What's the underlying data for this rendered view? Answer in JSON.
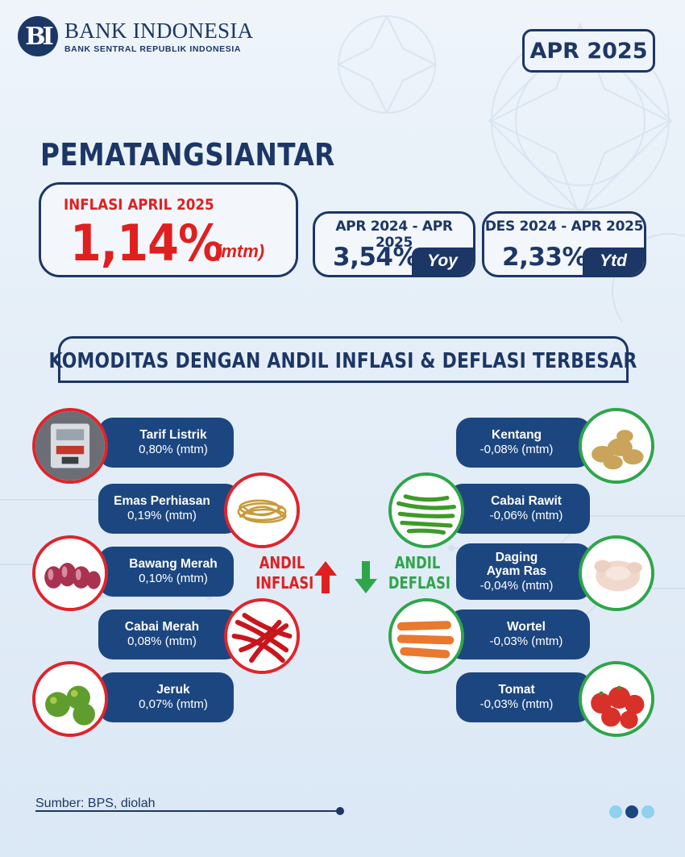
{
  "logo": {
    "name": "BANK INDONESIA",
    "subtitle": "BANK SENTRAL REPUBLIK INDONESIA"
  },
  "period": "APR 2025",
  "city": "PEMATANGSIANTAR",
  "headline": {
    "label": "INFLASI APRIL 2025",
    "value": "1,14%",
    "unit": "(mtm)"
  },
  "yoy": {
    "label": "APR 2024 - APR 2025",
    "value": "3,54%",
    "tag": "Yoy"
  },
  "ytd": {
    "label": "DES 2024 - APR 2025",
    "value": "2,33%",
    "tag": "Ytd"
  },
  "section_title": "KOMODITAS DENGAN ANDIL INFLASI & DEFLASI TERBESAR",
  "andil_inflasi": [
    "ANDIL",
    "INFLASI"
  ],
  "andil_deflasi": [
    "ANDIL",
    "DEFLASI"
  ],
  "colors": {
    "navy": "#1c3666",
    "card": "#1c4680",
    "inflation": "#e0201f",
    "deflation": "#2fa54a"
  },
  "inflation_items": [
    {
      "name": "Tarif Listrik",
      "value": "0,80% (mtm)",
      "icon": "electric-meter-icon"
    },
    {
      "name": "Emas Perhiasan",
      "value": "0,19% (mtm)",
      "icon": "gold-jewelry-icon"
    },
    {
      "name": "Bawang Merah",
      "value": "0,10% (mtm)",
      "icon": "shallot-icon"
    },
    {
      "name": "Cabai Merah",
      "value": "0,08% (mtm)",
      "icon": "red-chili-icon"
    },
    {
      "name": "Jeruk",
      "value": "0,07% (mtm)",
      "icon": "orange-fruit-icon"
    }
  ],
  "deflation_items": [
    {
      "name": "Kentang",
      "value": "-0,08% (mtm)",
      "icon": "potato-icon"
    },
    {
      "name": "Cabai Rawit",
      "value": "-0,06% (mtm)",
      "icon": "green-chili-icon"
    },
    {
      "name": "Daging Ayam Ras",
      "name_lines": [
        "Daging",
        "Ayam Ras"
      ],
      "value": "-0,04% (mtm)",
      "icon": "chicken-meat-icon"
    },
    {
      "name": "Wortel",
      "value": "-0,03% (mtm)",
      "icon": "carrot-icon"
    },
    {
      "name": "Tomat",
      "value": "-0,03% (mtm)",
      "icon": "tomato-icon"
    }
  ],
  "source": "Sumber: BPS, diolah"
}
